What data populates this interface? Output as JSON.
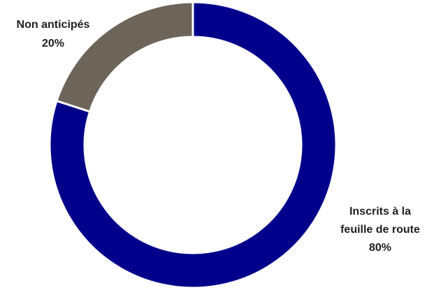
{
  "chart_data": {
    "type": "pie",
    "style": "donut",
    "slices": [
      {
        "label_lines": [
          "Inscrits à la",
          "feuille de route"
        ],
        "value": 80,
        "value_label": "80%",
        "color": "#00008b"
      },
      {
        "label_lines": [
          "Non anticipés"
        ],
        "value": 20,
        "value_label": "20%",
        "color": "#6d645a"
      }
    ],
    "legend": "none",
    "separator_color": "#ffffff"
  }
}
